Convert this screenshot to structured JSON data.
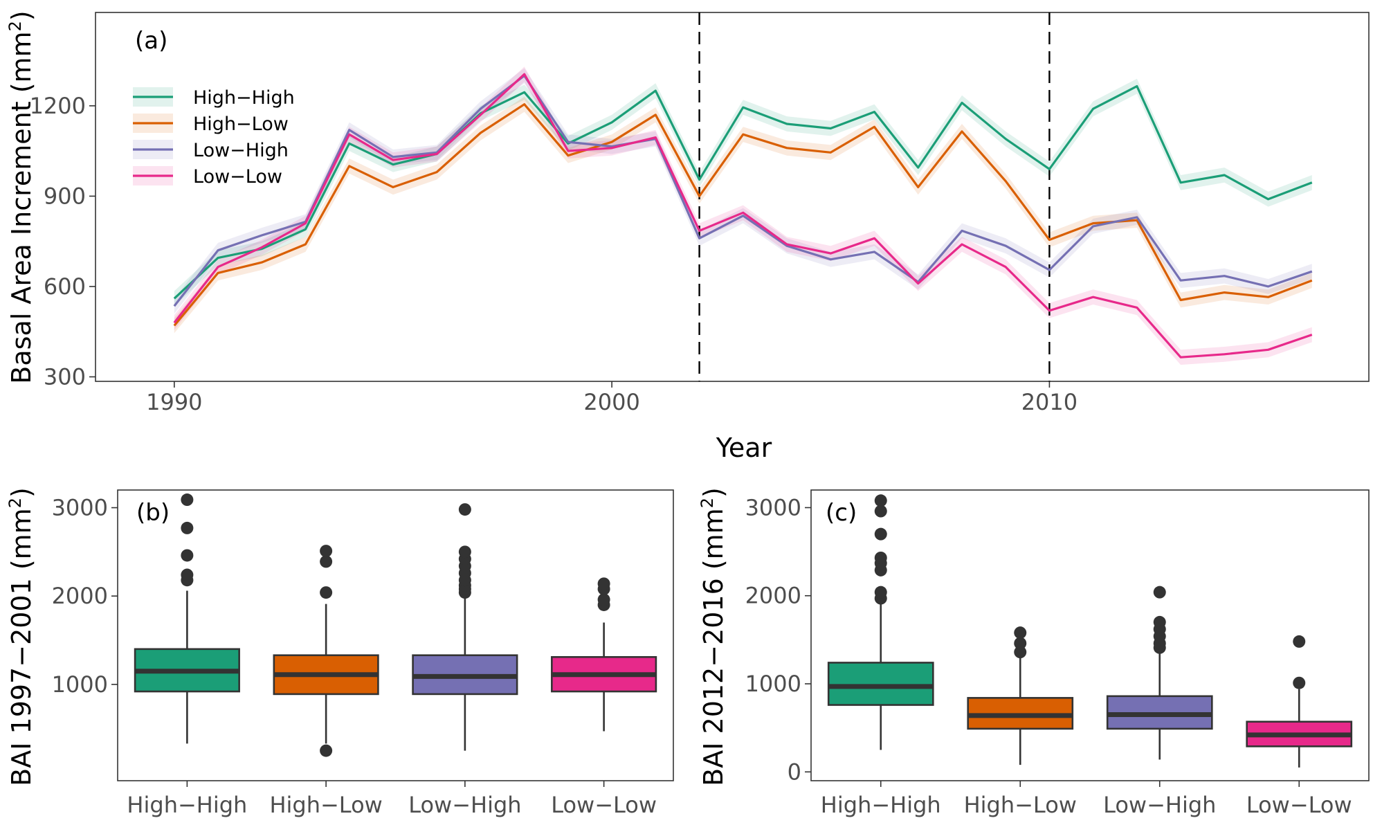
{
  "chart_data": [
    {
      "type": "line",
      "panel": "(a)",
      "title": "",
      "xlabel": "Year",
      "ylabel": "Basal Area Increment (mm",
      "ylabel_sup": "2",
      "ylabel_end": ")",
      "xlim": [
        1988.2,
        2017.3
      ],
      "ylim": [
        285,
        1510
      ],
      "xticks": [
        1990,
        2000,
        2010
      ],
      "yticks": [
        300,
        600,
        900,
        1200
      ],
      "vlines": [
        2002,
        2010
      ],
      "legend_position": "top-left",
      "x": [
        1990,
        1991,
        1992,
        1993,
        1994,
        1995,
        1996,
        1997,
        1998,
        1999,
        2000,
        2001,
        2002,
        2003,
        2004,
        2005,
        2006,
        2007,
        2008,
        2009,
        2010,
        2011,
        2012,
        2013,
        2014,
        2015,
        2016
      ],
      "series": [
        {
          "name": "High−High",
          "color": "#1b9e77",
          "values": [
            560,
            695,
            725,
            790,
            1075,
            1005,
            1040,
            1175,
            1245,
            1075,
            1145,
            1250,
            955,
            1195,
            1140,
            1125,
            1180,
            995,
            1210,
            1090,
            990,
            1190,
            1265,
            945,
            970,
            890,
            945
          ],
          "band": 25
        },
        {
          "name": "High−Low",
          "color": "#d95f02",
          "values": [
            470,
            645,
            680,
            740,
            1000,
            930,
            980,
            1110,
            1205,
            1035,
            1080,
            1170,
            900,
            1105,
            1060,
            1045,
            1130,
            930,
            1115,
            950,
            755,
            810,
            820,
            555,
            580,
            565,
            620
          ],
          "band": 25
        },
        {
          "name": "Low−High",
          "color": "#7570b3",
          "values": [
            535,
            720,
            770,
            815,
            1120,
            1030,
            1045,
            1190,
            1300,
            1080,
            1065,
            1090,
            760,
            835,
            735,
            690,
            715,
            615,
            785,
            735,
            655,
            800,
            830,
            620,
            635,
            600,
            650
          ],
          "band": 25
        },
        {
          "name": "Low−Low",
          "color": "#e7298a",
          "values": [
            480,
            665,
            730,
            810,
            1105,
            1020,
            1040,
            1170,
            1305,
            1050,
            1060,
            1095,
            785,
            845,
            740,
            710,
            760,
            610,
            740,
            665,
            520,
            565,
            530,
            365,
            375,
            390,
            440
          ],
          "band": 25
        }
      ]
    },
    {
      "type": "box",
      "panel": "(b)",
      "ylabel": "BAI 1997−2001 (mm",
      "ylabel_sup": "2",
      "ylabel_end": ")",
      "ylim": [
        -90,
        3200
      ],
      "yticks": [
        1000,
        2000,
        3000
      ],
      "categories": [
        "High−High",
        "High−Low",
        "Low−High",
        "Low−Low"
      ],
      "colors": [
        "#1b9e77",
        "#d95f02",
        "#7570b3",
        "#e7298a"
      ],
      "boxes": [
        {
          "min": 330,
          "q1": 920,
          "median": 1150,
          "q3": 1400,
          "max": 2060,
          "outliers": [
            2180,
            2240,
            2460,
            2770,
            3090
          ]
        },
        {
          "min": 330,
          "q1": 890,
          "median": 1110,
          "q3": 1330,
          "max": 1910,
          "outliers": [
            250,
            2040,
            2390,
            2510
          ]
        },
        {
          "min": 250,
          "q1": 890,
          "median": 1090,
          "q3": 1330,
          "max": 1970,
          "outliers": [
            2040,
            2080,
            2120,
            2180,
            2260,
            2340,
            2420,
            2500,
            2980
          ]
        },
        {
          "min": 470,
          "q1": 920,
          "median": 1110,
          "q3": 1310,
          "max": 1700,
          "outliers": [
            1900,
            1960,
            2080,
            2140
          ]
        }
      ]
    },
    {
      "type": "box",
      "panel": "(c)",
      "ylabel": "BAI 2012−2016 (mm",
      "ylabel_sup": "2",
      "ylabel_end": ")",
      "ylim": [
        -100,
        3200
      ],
      "yticks": [
        0,
        1000,
        2000,
        3000
      ],
      "categories": [
        "High−High",
        "High−Low",
        "Low−High",
        "Low−Low"
      ],
      "colors": [
        "#1b9e77",
        "#d95f02",
        "#7570b3",
        "#e7298a"
      ],
      "boxes": [
        {
          "min": 250,
          "q1": 760,
          "median": 970,
          "q3": 1240,
          "max": 1940,
          "outliers": [
            1970,
            2040,
            2290,
            2370,
            2430,
            2700,
            2960,
            3080
          ]
        },
        {
          "min": 80,
          "q1": 490,
          "median": 640,
          "q3": 840,
          "max": 1330,
          "outliers": [
            1360,
            1460,
            1580
          ]
        },
        {
          "min": 140,
          "q1": 490,
          "median": 650,
          "q3": 860,
          "max": 1390,
          "outliers": [
            1410,
            1460,
            1540,
            1620,
            1700,
            2040
          ]
        },
        {
          "min": 50,
          "q1": 290,
          "median": 420,
          "q3": 570,
          "max": 940,
          "outliers": [
            1010,
            1480
          ]
        }
      ]
    }
  ]
}
